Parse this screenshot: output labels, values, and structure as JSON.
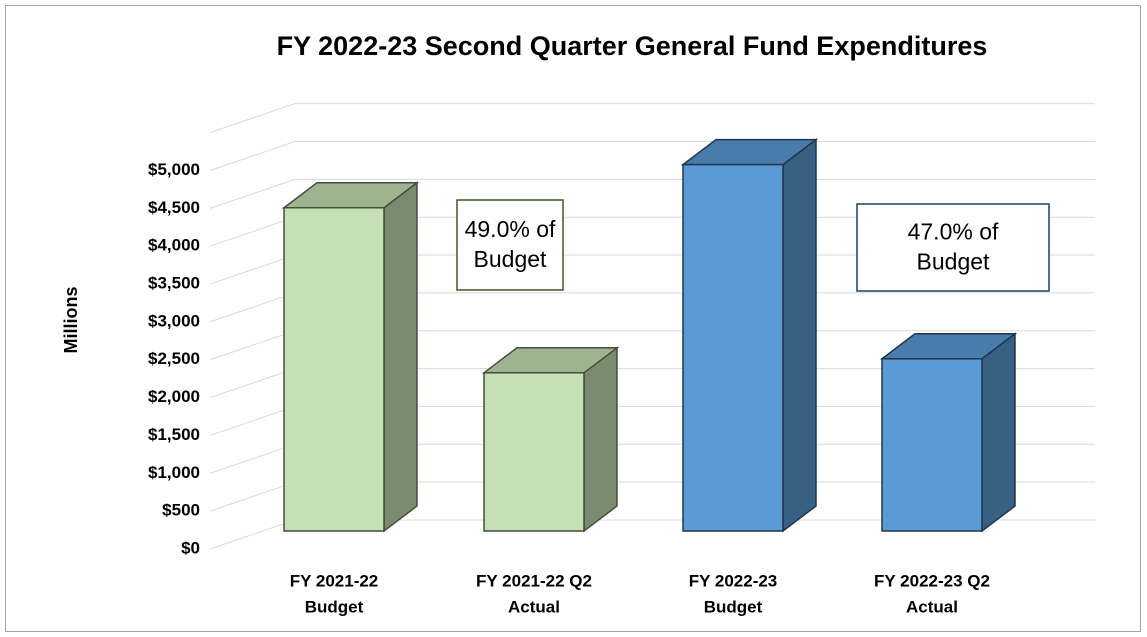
{
  "chart_data": {
    "type": "bar3d",
    "title": "FY 2022-23 Second Quarter General Fund Expenditures",
    "y_label": "Millions",
    "categories": [
      [
        "FY 2021-22",
        "Budget"
      ],
      [
        "FY 2021-22 Q2",
        "Actual"
      ],
      [
        "FY 2022-23",
        "Budget"
      ],
      [
        "FY 2022-23 Q2",
        "Actual"
      ]
    ],
    "values": [
      4270,
      2090,
      4840,
      2275
    ],
    "colors": [
      "#c5e0b4",
      "#c5e0b4",
      "#5b9bd5",
      "#5b9bd5"
    ],
    "ylim": [
      0,
      5500
    ],
    "yticks": [
      {
        "value": 0,
        "label": "$0"
      },
      {
        "value": 500,
        "label": "$500"
      },
      {
        "value": 1000,
        "label": "$1,000"
      },
      {
        "value": 1500,
        "label": "$1,500"
      },
      {
        "value": 2000,
        "label": "$2,000"
      },
      {
        "value": 2500,
        "label": "$2,500"
      },
      {
        "value": 3000,
        "label": "$3,000"
      },
      {
        "value": 3500,
        "label": "$3,500"
      },
      {
        "value": 4000,
        "label": "$4,000"
      },
      {
        "value": 4500,
        "label": "$4,500"
      },
      {
        "value": 5000,
        "label": "$5,000"
      }
    ],
    "grid": true,
    "annotations": [
      {
        "lines": [
          "49.0% of",
          "Budget"
        ],
        "color": "#3a5a1e"
      },
      {
        "lines": [
          "47.0% of",
          "Budget"
        ],
        "color": "#1f3f66"
      }
    ]
  }
}
